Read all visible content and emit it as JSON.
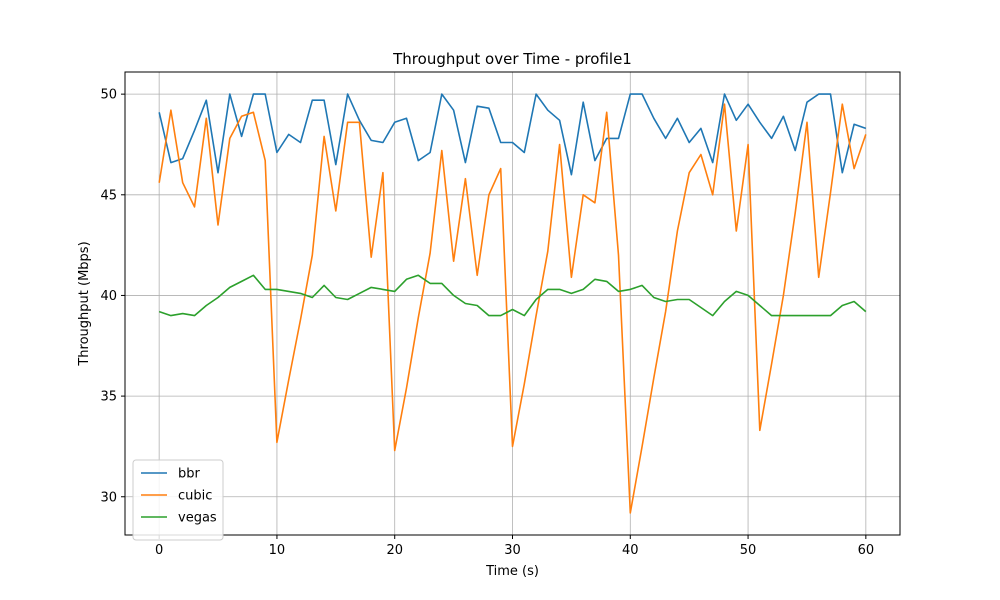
{
  "chart_data": {
    "type": "line",
    "title": "Throughput over Time - profile1",
    "xlabel": "Time (s)",
    "ylabel": "Throughput (Mbps)",
    "xlim": [
      -2.9,
      62.9
    ],
    "ylim": [
      28.1,
      51.1
    ],
    "xticks": [
      0,
      10,
      20,
      30,
      40,
      50,
      60
    ],
    "yticks": [
      30,
      35,
      40,
      45,
      50
    ],
    "grid": true,
    "legend_position": "lower-left",
    "x": [
      0,
      1,
      2,
      3,
      4,
      5,
      6,
      7,
      8,
      9,
      10,
      11,
      12,
      13,
      14,
      15,
      16,
      17,
      18,
      19,
      20,
      21,
      22,
      23,
      24,
      25,
      26,
      27,
      28,
      29,
      30,
      31,
      32,
      33,
      34,
      35,
      36,
      37,
      38,
      39,
      40,
      41,
      42,
      43,
      44,
      45,
      46,
      47,
      48,
      49,
      50,
      51,
      52,
      53,
      54,
      55,
      56,
      57,
      58,
      59,
      60
    ],
    "series": [
      {
        "name": "bbr",
        "color": "#1f77b4",
        "values": [
          49.1,
          46.6,
          46.8,
          48.2,
          49.7,
          46.1,
          50.0,
          47.9,
          50.0,
          50.0,
          47.1,
          48.0,
          47.6,
          49.7,
          49.7,
          46.5,
          50.0,
          48.7,
          47.7,
          47.6,
          48.6,
          48.8,
          46.7,
          47.1,
          50.0,
          49.2,
          46.6,
          49.4,
          49.3,
          47.6,
          47.6,
          47.1,
          50.0,
          49.2,
          48.7,
          46.0,
          49.6,
          46.7,
          47.8,
          47.8,
          50.0,
          50.0,
          48.8,
          47.8,
          48.8,
          47.6,
          48.3,
          46.6,
          50.0,
          48.7,
          49.5,
          48.6,
          47.8,
          48.9,
          47.2,
          49.6,
          50.0,
          50.0,
          46.1,
          48.5,
          48.3
        ]
      },
      {
        "name": "cubic",
        "color": "#ff7f0e",
        "values": [
          45.6,
          49.2,
          45.6,
          44.4,
          48.8,
          43.5,
          47.8,
          48.9,
          49.1,
          46.7,
          32.7,
          35.8,
          38.8,
          42.0,
          47.9,
          44.2,
          48.6,
          48.6,
          41.9,
          46.1,
          32.3,
          35.4,
          38.9,
          42.1,
          47.2,
          41.7,
          45.8,
          41.0,
          45.0,
          46.3,
          32.5,
          35.6,
          39.0,
          42.2,
          47.5,
          40.9,
          45.0,
          44.6,
          49.1,
          42.0,
          29.2,
          32.5,
          35.9,
          39.2,
          43.2,
          46.1,
          47.0,
          45.0,
          49.5,
          43.2,
          47.5,
          33.3,
          36.6,
          40.0,
          44.1,
          48.6,
          40.9,
          45.1,
          49.5,
          46.3,
          48.0
        ]
      },
      {
        "name": "vegas",
        "color": "#2ca02c",
        "values": [
          39.2,
          39.0,
          39.1,
          39.0,
          39.5,
          39.9,
          40.4,
          40.7,
          41.0,
          40.3,
          40.3,
          40.2,
          40.1,
          39.9,
          40.5,
          39.9,
          39.8,
          40.1,
          40.4,
          40.3,
          40.2,
          40.8,
          41.0,
          40.6,
          40.6,
          40.0,
          39.6,
          39.5,
          39.0,
          39.0,
          39.3,
          39.0,
          39.8,
          40.3,
          40.3,
          40.1,
          40.3,
          40.8,
          40.7,
          40.2,
          40.3,
          40.5,
          39.9,
          39.7,
          39.8,
          39.8,
          39.4,
          39.0,
          39.7,
          40.2,
          40.0,
          39.5,
          39.0,
          39.0,
          39.0,
          39.0,
          39.0,
          39.0,
          39.5,
          39.7,
          39.2
        ]
      }
    ]
  }
}
